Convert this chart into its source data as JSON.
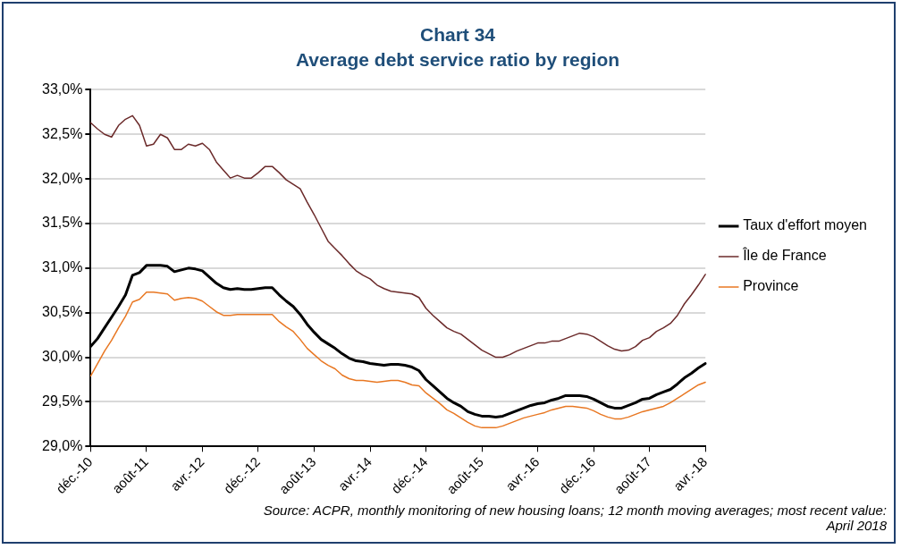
{
  "chart_data": {
    "type": "line",
    "title": "Chart 34",
    "subtitle": "Average debt service ratio by region",
    "categories": [
      "déc.-10",
      null,
      null,
      null,
      null,
      null,
      null,
      null,
      "août-11",
      null,
      null,
      null,
      null,
      null,
      null,
      null,
      "avr.-12",
      null,
      null,
      null,
      null,
      null,
      null,
      null,
      "déc.-12",
      null,
      null,
      null,
      null,
      null,
      null,
      null,
      "août-13",
      null,
      null,
      null,
      null,
      null,
      null,
      null,
      "avr.-14",
      null,
      null,
      null,
      null,
      null,
      null,
      null,
      "déc.-14",
      null,
      null,
      null,
      null,
      null,
      null,
      null,
      "août-15",
      null,
      null,
      null,
      null,
      null,
      null,
      null,
      "avr.-16",
      null,
      null,
      null,
      null,
      null,
      null,
      null,
      "déc.-16",
      null,
      null,
      null,
      null,
      null,
      null,
      null,
      "août-17",
      null,
      null,
      null,
      null,
      null,
      null,
      null,
      "avr.-18"
    ],
    "series": [
      {
        "name": "Taux d'effort moyen",
        "color": "#000000",
        "values": [
          30.12,
          30.21,
          30.33,
          30.45,
          30.57,
          30.7,
          30.92,
          30.95,
          31.03,
          31.03,
          31.03,
          31.02,
          30.96,
          30.98,
          31.0,
          30.99,
          30.97,
          30.9,
          30.83,
          30.78,
          30.76,
          30.77,
          30.76,
          30.76,
          30.77,
          30.78,
          30.78,
          30.7,
          30.63,
          30.57,
          30.48,
          30.37,
          30.28,
          30.2,
          30.15,
          30.1,
          30.04,
          29.99,
          29.96,
          29.95,
          29.93,
          29.92,
          29.91,
          29.92,
          29.92,
          29.91,
          29.89,
          29.85,
          29.75,
          29.68,
          29.61,
          29.54,
          29.49,
          29.45,
          29.39,
          29.36,
          29.34,
          29.34,
          29.33,
          29.34,
          29.37,
          29.4,
          29.43,
          29.46,
          29.48,
          29.49,
          29.52,
          29.54,
          29.57,
          29.57,
          29.57,
          29.56,
          29.53,
          29.49,
          29.45,
          29.43,
          29.43,
          29.46,
          29.49,
          29.53,
          29.54,
          29.58,
          29.61,
          29.64,
          29.7,
          29.77,
          29.82,
          29.88,
          29.93
        ]
      },
      {
        "name": "Île de France",
        "color": "#6b2a2a",
        "values": [
          32.63,
          32.56,
          32.5,
          32.47,
          32.6,
          32.67,
          32.71,
          32.6,
          32.37,
          32.39,
          32.5,
          32.46,
          32.33,
          32.33,
          32.39,
          32.37,
          32.4,
          32.33,
          32.19,
          32.1,
          32.01,
          32.04,
          32.01,
          32.01,
          32.07,
          32.14,
          32.14,
          32.07,
          31.99,
          31.94,
          31.89,
          31.74,
          31.6,
          31.45,
          31.3,
          31.22,
          31.14,
          31.05,
          30.97,
          30.92,
          30.88,
          30.81,
          30.77,
          30.74,
          30.73,
          30.72,
          30.71,
          30.67,
          30.55,
          30.47,
          30.4,
          30.33,
          30.29,
          30.26,
          30.2,
          30.14,
          30.08,
          30.04,
          30.0,
          30.0,
          30.03,
          30.07,
          30.1,
          30.13,
          30.16,
          30.16,
          30.18,
          30.18,
          30.21,
          30.24,
          30.27,
          30.26,
          30.23,
          30.18,
          30.13,
          30.09,
          30.07,
          30.08,
          30.12,
          30.19,
          30.22,
          30.29,
          30.33,
          30.38,
          30.47,
          30.6,
          30.7,
          30.81,
          30.93
        ]
      },
      {
        "name": "Province",
        "color": "#e87722",
        "values": [
          29.79,
          29.93,
          30.07,
          30.19,
          30.33,
          30.46,
          30.62,
          30.65,
          30.73,
          30.73,
          30.72,
          30.71,
          30.64,
          30.66,
          30.67,
          30.66,
          30.63,
          30.57,
          30.51,
          30.47,
          30.47,
          30.48,
          30.48,
          30.48,
          30.48,
          30.48,
          30.48,
          30.4,
          30.34,
          30.29,
          30.2,
          30.1,
          30.03,
          29.96,
          29.91,
          29.87,
          29.8,
          29.76,
          29.74,
          29.74,
          29.73,
          29.72,
          29.73,
          29.74,
          29.74,
          29.72,
          29.69,
          29.68,
          29.6,
          29.54,
          29.48,
          29.41,
          29.37,
          29.32,
          29.27,
          29.23,
          29.21,
          29.21,
          29.21,
          29.23,
          29.26,
          29.29,
          29.32,
          29.34,
          29.36,
          29.38,
          29.41,
          29.43,
          29.45,
          29.45,
          29.44,
          29.43,
          29.4,
          29.36,
          29.33,
          29.31,
          29.31,
          29.33,
          29.36,
          29.39,
          29.41,
          29.43,
          29.45,
          29.49,
          29.54,
          29.59,
          29.64,
          29.69,
          29.72
        ]
      }
    ],
    "ylim": [
      29,
      33
    ],
    "yticks": [
      {
        "value": 29,
        "label": "29,0%"
      },
      {
        "value": 29.5,
        "label": "29,5%"
      },
      {
        "value": 30,
        "label": "30,0%"
      },
      {
        "value": 30.5,
        "label": "30,5%"
      },
      {
        "value": 31,
        "label": "31,0%"
      },
      {
        "value": 31.5,
        "label": "31,5%"
      },
      {
        "value": 32,
        "label": "32,0%"
      },
      {
        "value": 32.5,
        "label": "32,5%"
      },
      {
        "value": 33,
        "label": "33,0%"
      }
    ],
    "grid": "y",
    "legend": "right",
    "marker": "none",
    "line_style": "solid",
    "annotations": [
      "Source: ACPR, monthly monitoring of new housing loans; 12 month moving averages; most recent value: April 2018"
    ]
  }
}
